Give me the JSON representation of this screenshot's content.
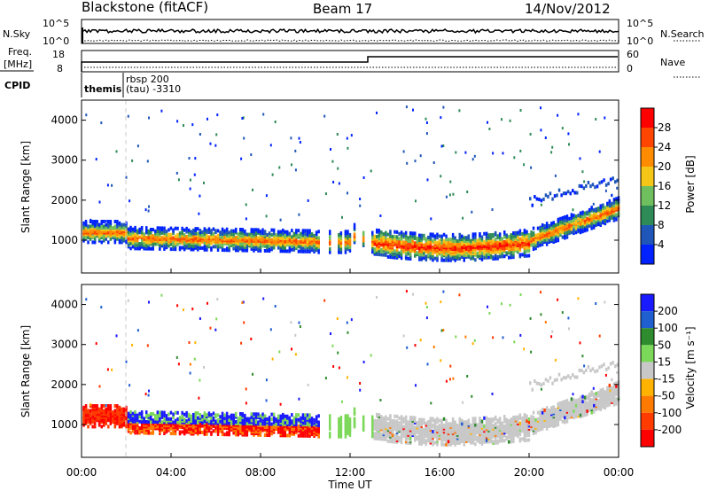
{
  "header": {
    "station": "Blackstone (fitACF)",
    "beam": "Beam 17",
    "date": "14/Nov/2012"
  },
  "panels": {
    "nsky": {
      "label": "N.Sky",
      "tick_top": "10^5",
      "tick_bottom": "10^0",
      "right_label": "N.Search",
      "right_tick_top": "10^5",
      "right_tick_bottom": "10^0"
    },
    "freq": {
      "label_1": "Freq.",
      "label_2": "[MHz]",
      "tick_top": "18",
      "tick_bottom": "8",
      "right_label": "Nave",
      "right_tick_top": "60",
      "right_tick_bottom": "0"
    },
    "cpid": {
      "label": "CPID",
      "mode_1": "themis",
      "mode_2_line1": "rbsp 200",
      "mode_2_line2": "(tau) -3310"
    }
  },
  "colors": {
    "power": [
      "#0022ff",
      "#1f56b8",
      "#2e8b57",
      "#6fbf5f",
      "#f5c518",
      "#ff8c00",
      "#ff4500",
      "#ff0000"
    ],
    "velocity": [
      "#1a1aff",
      "#1f5fd0",
      "#2e8b2e",
      "#7cd858",
      "#c8c8c8",
      "#ffb300",
      "#ff7a00",
      "#ff3b00",
      "#ff0000"
    ]
  },
  "chart_data": [
    {
      "type": "heatmap",
      "name": "power",
      "ylabel": "Slant Range [km]",
      "ylim": [
        180,
        4500
      ],
      "yticks": [
        "1000",
        "2000",
        "3000",
        "4000"
      ],
      "xlim_hours": [
        0,
        24
      ],
      "colorbar_label": "Power [dB]",
      "colorbar_ticks": [
        "4",
        "8",
        "12",
        "16",
        "20",
        "24",
        "28"
      ]
    },
    {
      "type": "heatmap",
      "name": "velocity",
      "ylabel": "Slant Range [km]",
      "ylim": [
        180,
        4500
      ],
      "yticks": [
        "1000",
        "2000",
        "3000",
        "4000"
      ],
      "xlim_hours": [
        0,
        24
      ],
      "xticks": [
        "00:00",
        "04:00",
        "08:00",
        "12:00",
        "16:00",
        "20:00",
        "00:00"
      ],
      "xlabel": "Time UT",
      "colorbar_label": "Velocity [m s⁻¹]",
      "colorbar_ticks": [
        "200",
        "100",
        "50",
        "15",
        "-15",
        "-50",
        "-100",
        "-200"
      ]
    }
  ]
}
